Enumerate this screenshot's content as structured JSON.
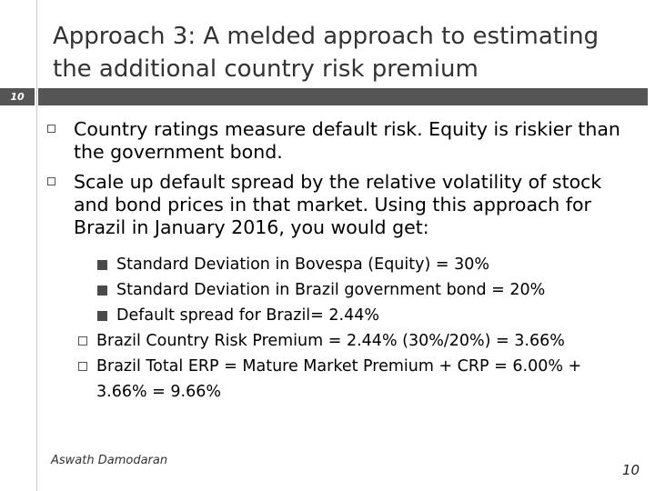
{
  "slide": {
    "title": "Approach 3: A melded approach to estimating the additional country risk premium",
    "number_tab": "10",
    "bullets": [
      {
        "text": "Country ratings measure default risk. Equity is riskier than the government bond."
      },
      {
        "text": "Scale up default spread by the relative volatility of stock and bond prices in that market.  Using this approach for Brazil in January 2016, you would get:"
      }
    ],
    "sub_bullets": [
      {
        "text": "Standard Deviation in Bovespa (Equity) = 30%"
      },
      {
        "text": "Standard Deviation in Brazil government bond = 20%"
      },
      {
        "text": "Default spread for Brazil= 2.44%"
      }
    ],
    "results": [
      {
        "text": "Brazil Country Risk Premium = 2.44% (30%/20%) =  3.66%"
      },
      {
        "text": "Brazil Total ERP = Mature Market Premium + CRP = 6.00% + 3.66% = 9.66%"
      }
    ],
    "author": "Aswath Damodaran",
    "page_number": "10"
  },
  "colors": {
    "band": "#555555",
    "title_text": "#333333",
    "square_bullet": "#4a4a4a"
  }
}
